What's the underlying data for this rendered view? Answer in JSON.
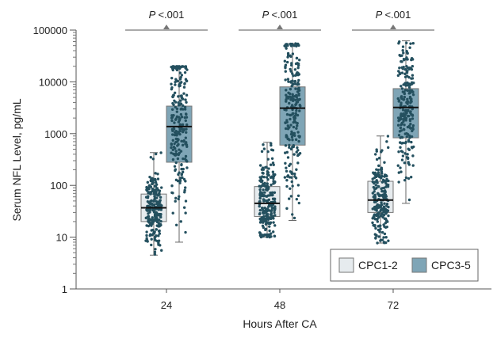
{
  "chart_data": {
    "type": "box",
    "title": "",
    "xlabel": "Hours After CA",
    "ylabel": "Serum NFL Level, pg/mL",
    "yscale": "log",
    "ylim": [
      1,
      100000
    ],
    "yticks": [
      1,
      10,
      100,
      1000,
      10000,
      100000
    ],
    "ytick_labels": [
      "1",
      "10",
      "100",
      "1000",
      "10000",
      "100000"
    ],
    "categories": [
      "24",
      "48",
      "72"
    ],
    "legend": {
      "placement": "bottom-right",
      "entries": [
        "CPC1-2",
        "CPC3-5"
      ]
    },
    "colors": {
      "CPC1-2": "#e6ebee",
      "CPC3-5": "#7fa5b6",
      "points": "#24505f"
    },
    "annotations": [
      "P <.001",
      "P <.001",
      "P <.001"
    ],
    "series": [
      {
        "name": "CPC1-2",
        "boxes": [
          {
            "whisker_low": 4.5,
            "q1": 20,
            "median": 37,
            "q3": 68,
            "whisker_high": 430
          },
          {
            "whisker_low": 10,
            "q1": 25,
            "median": 45,
            "q3": 95,
            "whisker_high": 680
          },
          {
            "whisker_low": 7.7,
            "q1": 30,
            "median": 52,
            "q3": 120,
            "whisker_high": 900
          }
        ]
      },
      {
        "name": "CPC3-5",
        "boxes": [
          {
            "whisker_low": 8,
            "q1": 280,
            "median": 1370,
            "q3": 3400,
            "whisker_high": 20000
          },
          {
            "whisker_low": 21,
            "q1": 600,
            "median": 3100,
            "q3": 8000,
            "whisker_high": 55000
          },
          {
            "whisker_low": 45,
            "q1": 830,
            "median": 3200,
            "q3": 7400,
            "whisker_high": 62000
          }
        ]
      }
    ]
  }
}
